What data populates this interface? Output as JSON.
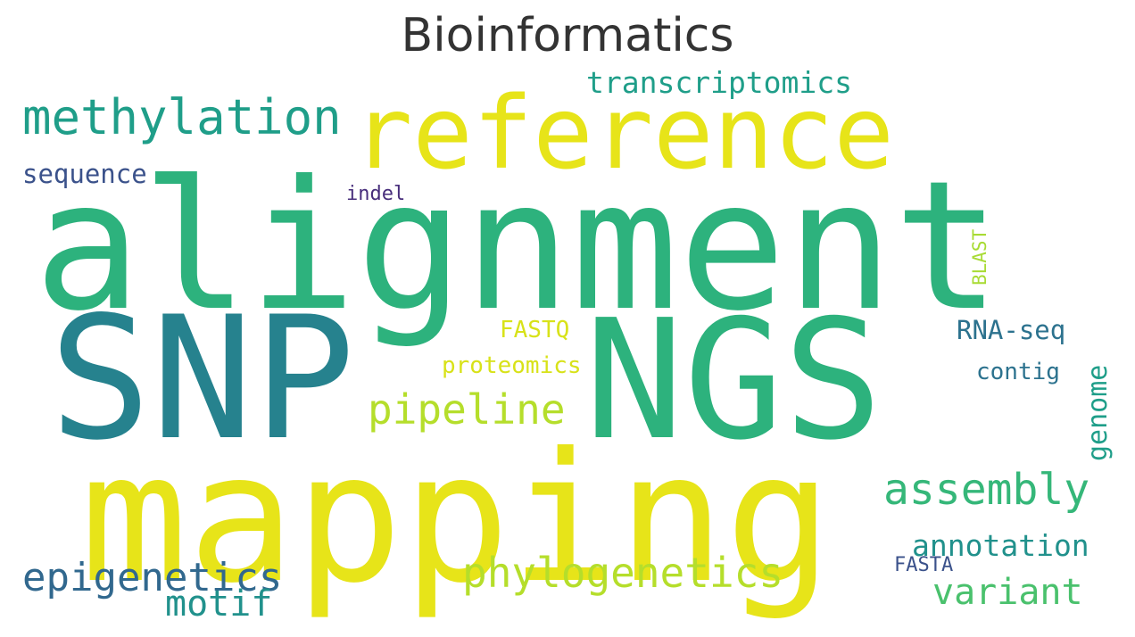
{
  "chart_data": {
    "type": "wordcloud",
    "title": "Bioinformatics",
    "words": [
      {
        "text": "alignment",
        "weight": 100,
        "color": "#2db27d"
      },
      {
        "text": "SNP",
        "weight": 92,
        "color": "#26828e"
      },
      {
        "text": "NGS",
        "weight": 90,
        "color": "#2db27d"
      },
      {
        "text": "mapping",
        "weight": 95,
        "color": "#e7e419"
      },
      {
        "text": "reference",
        "weight": 70,
        "color": "#e7e419"
      },
      {
        "text": "methylation",
        "weight": 38,
        "color": "#1f9e89"
      },
      {
        "text": "assembly",
        "weight": 34,
        "color": "#35b779"
      },
      {
        "text": "phylogenetics",
        "weight": 33,
        "color": "#b5de2b"
      },
      {
        "text": "epigenetics",
        "weight": 31,
        "color": "#31688e"
      },
      {
        "text": "pipeline",
        "weight": 31,
        "color": "#b5de2b"
      },
      {
        "text": "variant",
        "weight": 28,
        "color": "#4ac16d"
      },
      {
        "text": "motif",
        "weight": 28,
        "color": "#21918c"
      },
      {
        "text": "transcriptomics",
        "weight": 24,
        "color": "#1f9e89"
      },
      {
        "text": "annotation",
        "weight": 24,
        "color": "#21918c"
      },
      {
        "text": "sequence",
        "weight": 21,
        "color": "#3b528b"
      },
      {
        "text": "RNA-seq",
        "weight": 21,
        "color": "#2c728e"
      },
      {
        "text": "genome",
        "weight": 21,
        "color": "#1f9e89"
      },
      {
        "text": "proteomics",
        "weight": 20,
        "color": "#d8e219"
      },
      {
        "text": "FASTQ",
        "weight": 20,
        "color": "#d8e219"
      },
      {
        "text": "contig",
        "weight": 20,
        "color": "#2c728e"
      },
      {
        "text": "indel",
        "weight": 16,
        "color": "#472d7b"
      },
      {
        "text": "BLAST",
        "weight": 16,
        "color": "#a8db34"
      },
      {
        "text": "FASTA",
        "weight": 16,
        "color": "#3b528b"
      }
    ]
  }
}
